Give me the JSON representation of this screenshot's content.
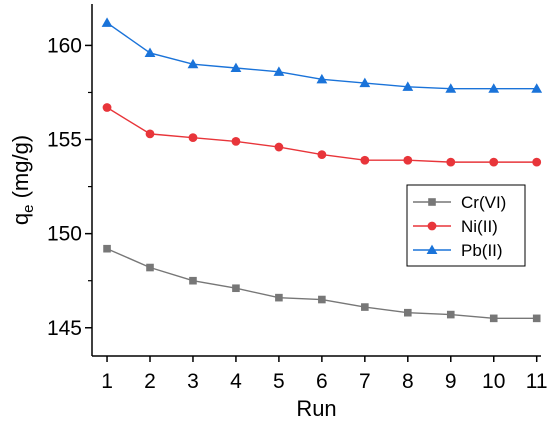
{
  "chart_data": {
    "type": "line",
    "xlabel": "Run",
    "ylabel": {
      "main": "q",
      "sub": "e",
      "unit": " (mg/g)"
    },
    "x": [
      1,
      2,
      3,
      4,
      5,
      6,
      7,
      8,
      9,
      10,
      11
    ],
    "xlim": [
      0.65,
      11.1
    ],
    "ylim": [
      143.5,
      162.2
    ],
    "yticks": [
      145,
      150,
      155,
      160
    ],
    "grid": false,
    "legend_position": "right-middle",
    "series": [
      {
        "name": "Cr(VI)",
        "color": "#777777",
        "marker": "square",
        "values": [
          149.2,
          148.2,
          147.5,
          147.1,
          146.6,
          146.5,
          146.1,
          145.8,
          145.7,
          145.5,
          145.5
        ]
      },
      {
        "name": "Ni(II)",
        "color": "#e8353a",
        "marker": "circle",
        "values": [
          156.7,
          155.3,
          155.1,
          154.9,
          154.6,
          154.2,
          153.9,
          153.9,
          153.8,
          153.8,
          153.8
        ]
      },
      {
        "name": "Pb(II)",
        "color": "#1a73d9",
        "marker": "triangle",
        "values": [
          161.2,
          159.6,
          159.0,
          158.8,
          158.6,
          158.2,
          158.0,
          157.8,
          157.7,
          157.7,
          157.7
        ]
      }
    ]
  }
}
